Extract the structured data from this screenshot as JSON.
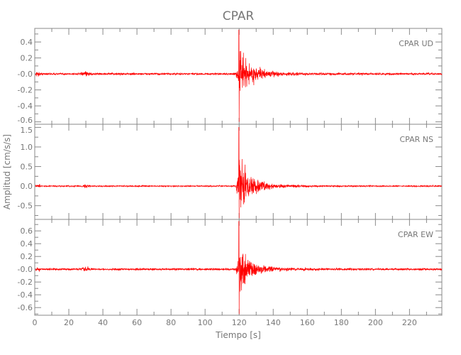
{
  "chart_data": {
    "type": "line",
    "title": "CPAR",
    "xlabel": "Tiempo [s]",
    "ylabel": "Amplitud [cm/s/s]",
    "xlim": [
      0,
      239
    ],
    "xticks": [
      0,
      20,
      40,
      60,
      80,
      100,
      120,
      140,
      160,
      180,
      200,
      220
    ],
    "grid": false,
    "line_color": "#ff0000",
    "axis_color": "#888888",
    "panels": [
      {
        "label": "CPAR   UD",
        "ylim": [
          -0.63,
          0.57
        ],
        "yticks": [
          -0.6,
          -0.4,
          -0.2,
          0.0,
          0.2,
          0.4
        ],
        "ytick_labels": [
          "-0.6",
          "-0.4",
          "-0.2",
          "-0.0",
          "0.2",
          "0.4"
        ],
        "max": 0.55,
        "min": -0.6,
        "noise": 0.012,
        "onset_s": 118,
        "peak_s": 120
      },
      {
        "label": "CPAR   NS",
        "ylim": [
          -0.85,
          1.58
        ],
        "yticks": [
          -0.5,
          0.0,
          0.5,
          1.0,
          1.5
        ],
        "ytick_labels": [
          "-0.5",
          "0.0",
          "0.5",
          "1.0",
          "1.5"
        ],
        "max": 1.5,
        "min": -0.82,
        "noise": 0.015,
        "onset_s": 118,
        "peak_s": 120
      },
      {
        "label": "CPAR   EW",
        "ylim": [
          -0.72,
          0.78
        ],
        "yticks": [
          -0.6,
          -0.4,
          -0.2,
          0.0,
          0.2,
          0.4,
          0.6
        ],
        "ytick_labels": [
          "-0.6",
          "-0.4",
          "-0.2",
          "-0.0",
          "0.2",
          "0.4",
          "0.6"
        ],
        "max": 0.75,
        "min": -0.7,
        "noise": 0.015,
        "onset_s": 118,
        "peak_s": 120
      }
    ]
  }
}
